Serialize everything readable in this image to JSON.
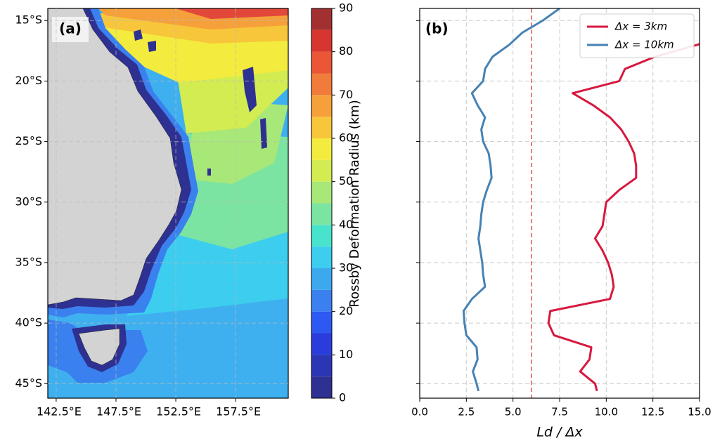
{
  "chart_data": [
    {
      "type": "contour_map",
      "label": "(a)",
      "xlim": [
        141.8,
        161.9
      ],
      "ylim": [
        -46.2,
        -14
      ],
      "xticks": [
        {
          "value": 142.5,
          "label": "142.5°E"
        },
        {
          "value": 147.5,
          "label": "147.5°E"
        },
        {
          "value": 152.5,
          "label": "152.5°E"
        },
        {
          "value": 157.5,
          "label": "157.5°E"
        }
      ],
      "yticks": [
        {
          "value": -15,
          "label": "15°S"
        },
        {
          "value": -20,
          "label": "20°S"
        },
        {
          "value": -25,
          "label": "25°S"
        },
        {
          "value": -30,
          "label": "30°S"
        },
        {
          "value": -35,
          "label": "35°S"
        },
        {
          "value": -40,
          "label": "40°S"
        },
        {
          "value": -45,
          "label": "45°S"
        }
      ],
      "grid": true,
      "colorbar": {
        "label": "Rossby Deformation Radius (km)",
        "levels": [
          0,
          5,
          10,
          15,
          20,
          25,
          30,
          35,
          40,
          45,
          50,
          55,
          60,
          65,
          70,
          75,
          80,
          85,
          90
        ],
        "colors": [
          "#2e3191",
          "#2b36b4",
          "#2a3ddc",
          "#2d58f2",
          "#3a80ee",
          "#3ca8ee",
          "#3dcdee",
          "#48e3cc",
          "#7ce4a2",
          "#a8e878",
          "#d2ec52",
          "#f3ec3e",
          "#f7c63a",
          "#f5a03a",
          "#f07b3a",
          "#ea5636",
          "#d73530",
          "#a33030"
        ],
        "ticks": [
          0,
          10,
          20,
          30,
          40,
          50,
          60,
          70,
          80,
          90
        ]
      }
    },
    {
      "type": "line",
      "label": "(b)",
      "xlabel": "Ld / Δx",
      "xlim": [
        0,
        15
      ],
      "ylim": [
        -46.2,
        -14
      ],
      "xticks": [
        {
          "value": 0,
          "label": "0.0"
        },
        2.5,
        {
          "value": 5,
          "label": "5.0"
        },
        7.5,
        {
          "value": 10,
          "label": "10.0"
        },
        12.5,
        {
          "value": 15,
          "label": "15.0"
        }
      ],
      "yticks": [
        -15,
        -20,
        -25,
        -30,
        -35,
        -40,
        -45
      ],
      "grid": true,
      "legend": "upper right",
      "reference_x": 6,
      "reference_color": "#e05555",
      "y": [
        -14,
        -15,
        -16,
        -17,
        -18,
        -19,
        -20,
        -21,
        -22,
        -23,
        -24,
        -25,
        -26,
        -27,
        -28,
        -29,
        -30,
        -31,
        -32,
        -33,
        -34,
        -35,
        -36,
        -37,
        -38,
        -39,
        -40,
        -41,
        -42,
        -43,
        -44,
        -45,
        -45.6
      ],
      "series": [
        {
          "name": "Δx = 3km",
          "color": "#d7193f",
          "values": [
            null,
            null,
            16.5,
            14.9,
            12.6,
            11.0,
            10.7,
            8.2,
            9.3,
            10.2,
            10.8,
            11.2,
            11.5,
            11.6,
            11.6,
            10.7,
            10.0,
            9.9,
            9.8,
            9.4,
            9.8,
            10.1,
            10.3,
            10.4,
            10.2,
            7.0,
            6.9,
            7.2,
            9.2,
            9.1,
            8.6,
            9.4,
            9.5
          ]
        },
        {
          "name": "Δx = 10km",
          "color": "#4682b4",
          "values": [
            7.5,
            6.6,
            5.5,
            4.8,
            3.9,
            3.5,
            3.4,
            2.8,
            3.1,
            3.5,
            3.3,
            3.4,
            3.7,
            3.8,
            3.85,
            3.6,
            3.4,
            3.3,
            3.25,
            3.15,
            3.25,
            3.35,
            3.4,
            3.5,
            2.8,
            2.35,
            2.4,
            2.5,
            3.05,
            3.1,
            2.85,
            3.05,
            3.15
          ]
        }
      ]
    }
  ]
}
